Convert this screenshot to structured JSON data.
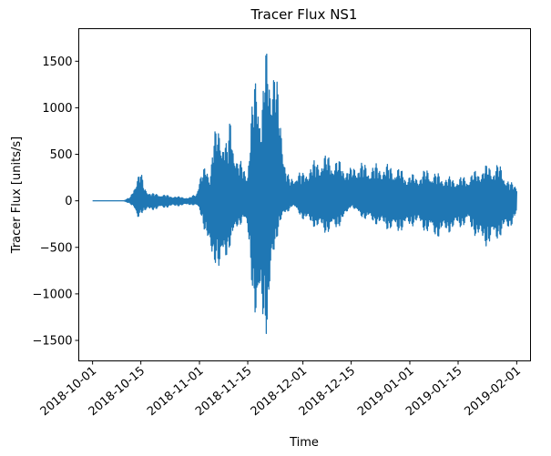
{
  "chart_data": {
    "type": "line",
    "title": "Tracer Flux NS1",
    "xlabel": "Time",
    "ylabel": "Tracer Flux [units/s]",
    "color": "#1f77b4",
    "xlim": [
      "2018-09-27",
      "2019-02-05"
    ],
    "ylim": [
      -1720,
      1850
    ],
    "grid": false,
    "legend": false,
    "xticks": [
      "2018-10-01",
      "2018-10-15",
      "2018-11-01",
      "2018-11-15",
      "2018-12-01",
      "2018-12-15",
      "2019-01-01",
      "2019-01-15",
      "2019-02-01"
    ],
    "yticks": [
      -1500,
      -1000,
      -500,
      0,
      500,
      1000,
      1500
    ],
    "ytick_labels": [
      "−1500",
      "−1000",
      "−500",
      "0",
      "500",
      "1000",
      "1500"
    ],
    "envelope": {
      "dates": [
        "2018-10-01",
        "2018-10-10",
        "2018-10-12",
        "2018-10-13",
        "2018-10-14",
        "2018-10-15",
        "2018-10-16",
        "2018-10-18",
        "2018-10-21",
        "2018-10-24",
        "2018-10-27",
        "2018-10-29",
        "2018-10-31",
        "2018-11-01",
        "2018-11-03",
        "2018-11-04",
        "2018-11-05",
        "2018-11-06",
        "2018-11-07",
        "2018-11-08",
        "2018-11-09",
        "2018-11-10",
        "2018-11-11",
        "2018-11-12",
        "2018-11-14",
        "2018-11-15",
        "2018-11-16",
        "2018-11-17",
        "2018-11-18",
        "2018-11-19",
        "2018-11-20",
        "2018-11-21",
        "2018-11-22",
        "2018-11-23",
        "2018-11-24",
        "2018-11-25",
        "2018-11-26",
        "2018-11-27",
        "2018-11-28",
        "2018-11-29",
        "2018-12-01",
        "2018-12-03",
        "2018-12-05",
        "2018-12-07",
        "2018-12-09",
        "2018-12-11",
        "2018-12-13",
        "2018-12-15",
        "2018-12-17",
        "2018-12-19",
        "2018-12-22",
        "2018-12-25",
        "2018-12-28",
        "2018-12-31",
        "2019-01-03",
        "2019-01-06",
        "2019-01-09",
        "2019-01-12",
        "2019-01-15",
        "2019-01-18",
        "2019-01-21",
        "2019-01-24",
        "2019-01-27",
        "2019-01-30",
        "2019-02-01"
      ],
      "upper": [
        0,
        0,
        40,
        150,
        300,
        320,
        150,
        80,
        70,
        50,
        40,
        30,
        80,
        250,
        400,
        300,
        700,
        800,
        850,
        780,
        600,
        950,
        700,
        450,
        400,
        350,
        900,
        1400,
        1500,
        900,
        1650,
        1700,
        1650,
        1500,
        1100,
        800,
        400,
        250,
        250,
        350,
        300,
        400,
        450,
        500,
        500,
        450,
        400,
        350,
        450,
        400,
        400,
        400,
        380,
        300,
        280,
        350,
        300,
        260,
        250,
        280,
        350,
        400,
        400,
        200,
        180
      ],
      "lower": [
        0,
        0,
        -30,
        -80,
        -230,
        -130,
        -120,
        -100,
        -80,
        -60,
        -50,
        -40,
        -50,
        -100,
        -400,
        -650,
        -700,
        -650,
        -900,
        -700,
        -600,
        -500,
        -450,
        -300,
        -200,
        -400,
        -800,
        -1300,
        -1560,
        -1200,
        -1450,
        -1500,
        -800,
        -500,
        -300,
        -200,
        -150,
        -100,
        -50,
        -100,
        -200,
        -250,
        -300,
        -350,
        -350,
        -300,
        -200,
        -50,
        -150,
        -200,
        -250,
        -300,
        -350,
        -300,
        -250,
        -350,
        -400,
        -350,
        -300,
        -250,
        -450,
        -500,
        -400,
        -300,
        -150
      ]
    }
  }
}
